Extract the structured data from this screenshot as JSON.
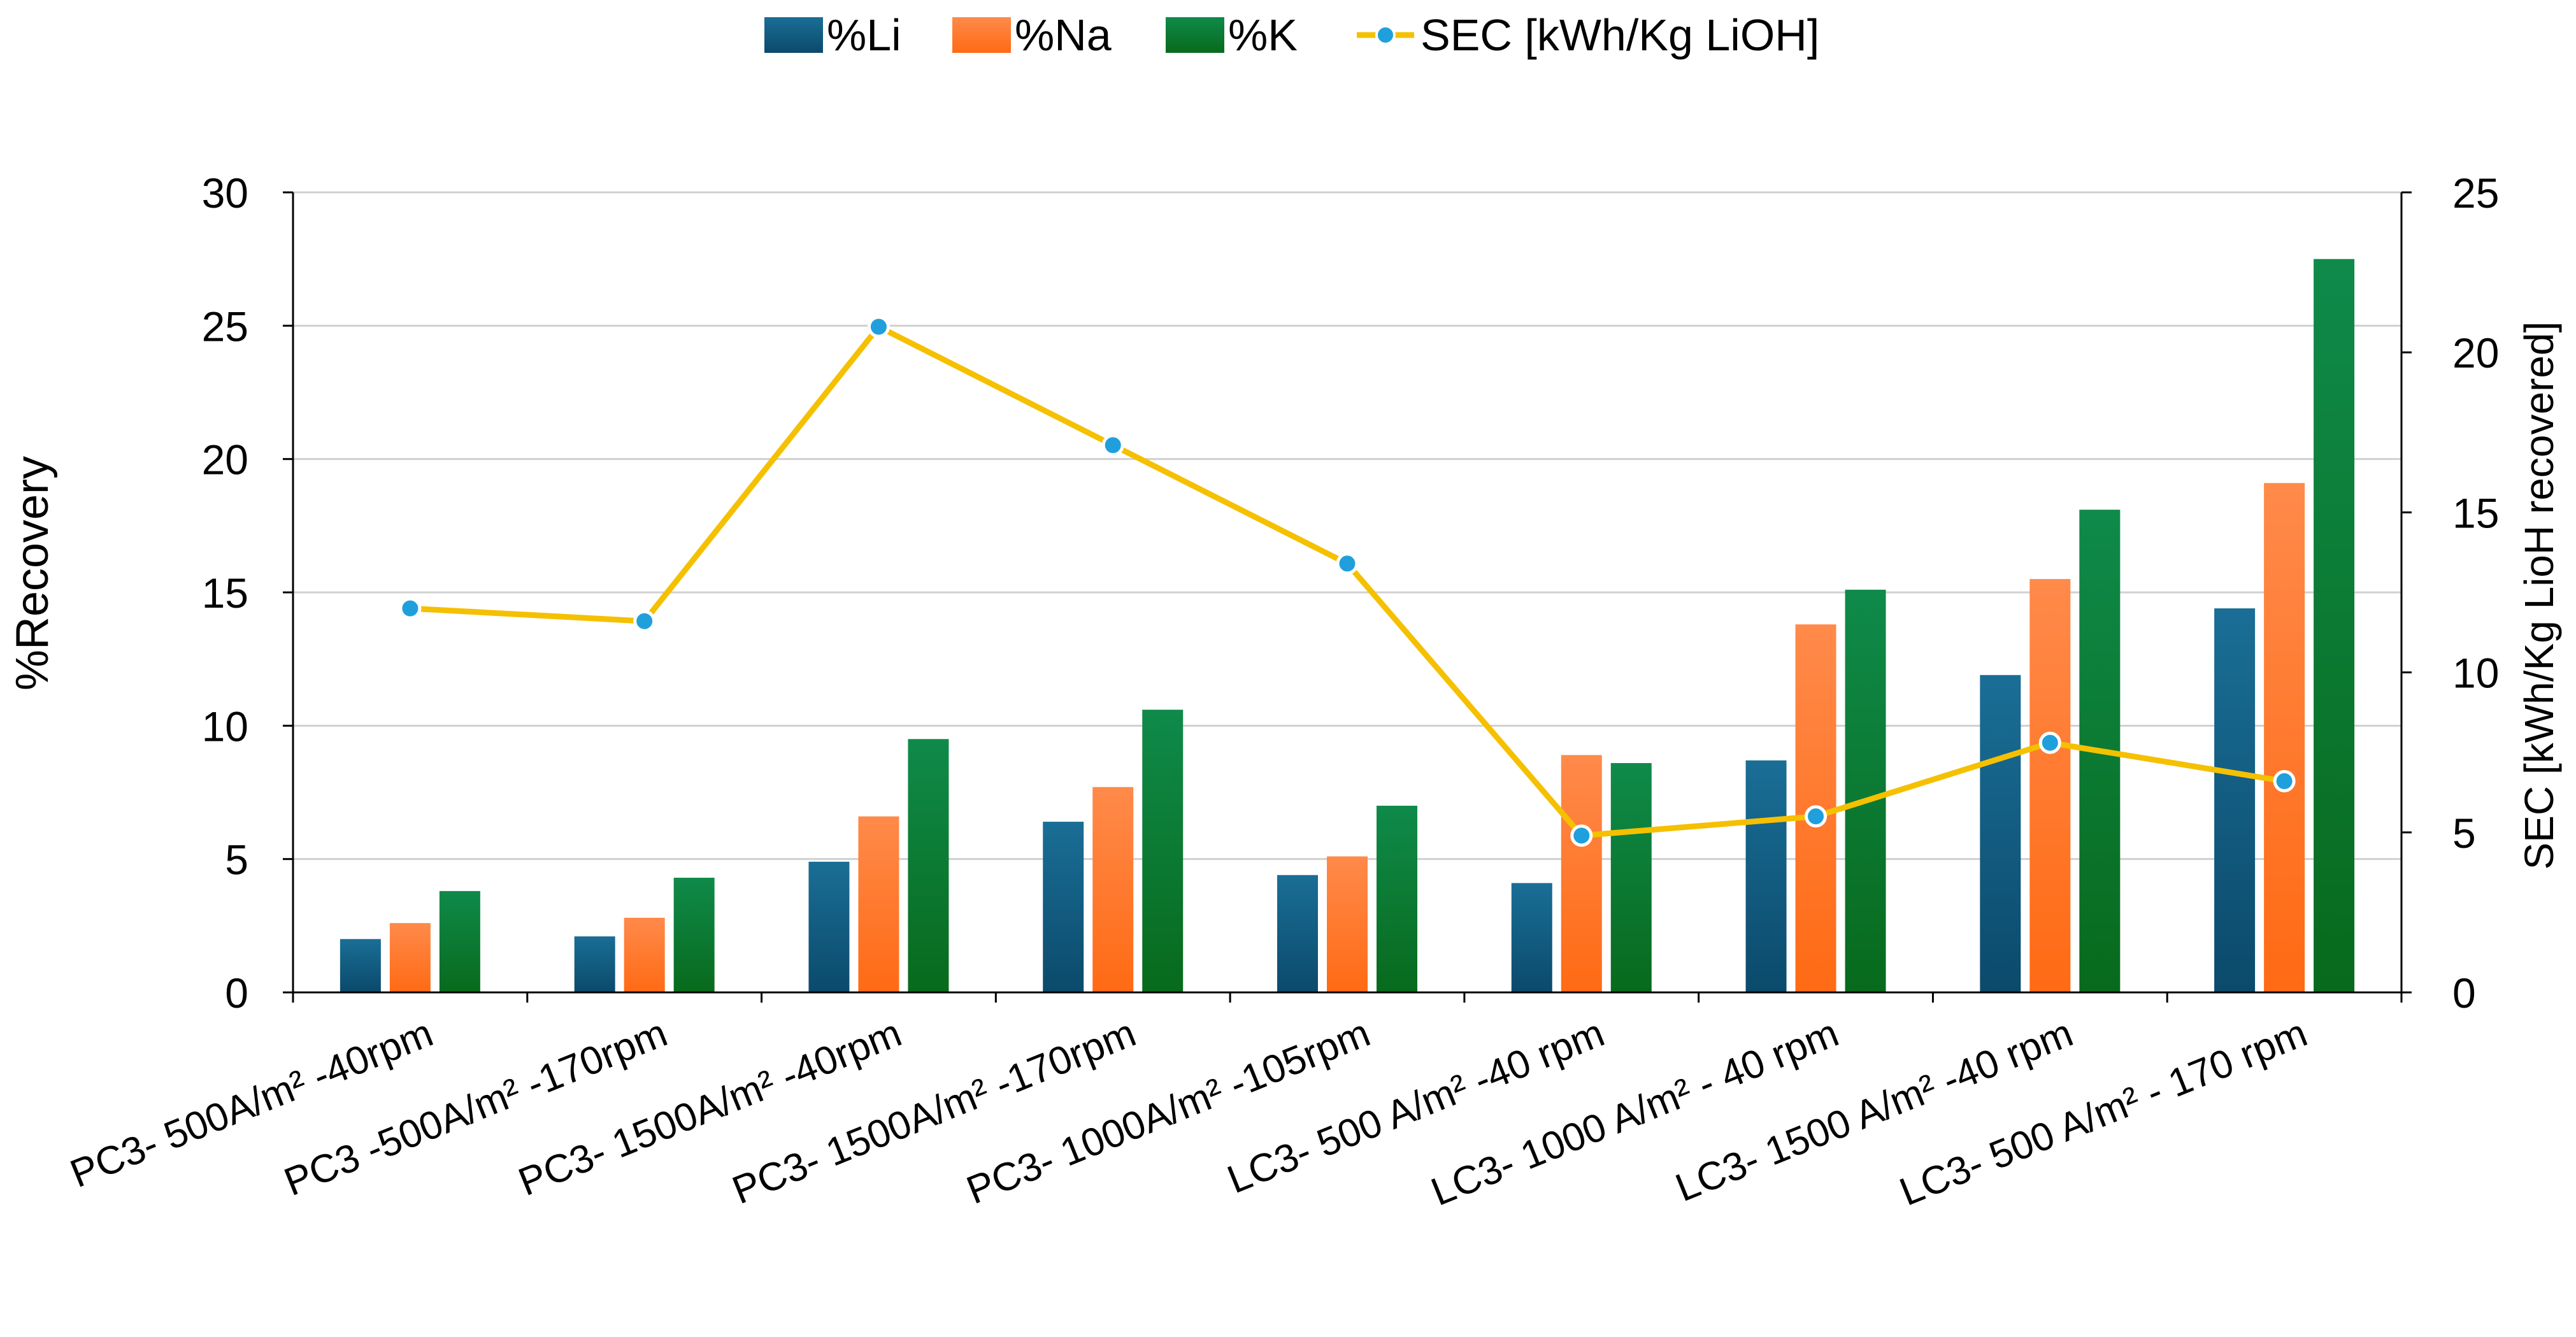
{
  "chart_data": {
    "type": "bar",
    "title": "",
    "categories": [
      "PC3- 500A/m² -40rpm",
      "PC3 -500A/m² -170rpm",
      "PC3- 1500A/m² -40rpm",
      "PC3- 1500A/m² -170rpm",
      "PC3- 1000A/m² -105rpm",
      "LC3- 500 A/m² -40 rpm",
      "LC3- 1000 A/m² - 40 rpm",
      "LC3- 1500 A/m² -40 rpm",
      "LC3- 500 A/m² - 170 rpm"
    ],
    "series": [
      {
        "name": "%Li",
        "kind": "bar",
        "axis": "left",
        "color": "#1a6e96",
        "color_dark": "#0b4a6b",
        "values": [
          2.0,
          2.1,
          4.9,
          6.4,
          4.4,
          4.1,
          8.7,
          11.9,
          14.4
        ]
      },
      {
        "name": "%Na",
        "kind": "bar",
        "axis": "left",
        "color": "#ff8a4a",
        "color_dark": "#ff6a14",
        "values": [
          2.6,
          2.8,
          6.6,
          7.7,
          5.1,
          8.9,
          13.8,
          15.5,
          19.1
        ]
      },
      {
        "name": "%K",
        "kind": "bar",
        "axis": "left",
        "color": "#0f8a4a",
        "color_dark": "#086a1c",
        "values": [
          3.8,
          4.3,
          9.5,
          10.6,
          7.0,
          8.6,
          15.1,
          18.1,
          27.5
        ]
      },
      {
        "name": "SEC [kWh/Kg LiOH]",
        "kind": "line",
        "axis": "right",
        "color": "#f5c000",
        "marker_color": "#1fa0dc",
        "values": [
          12.0,
          11.6,
          20.8,
          17.1,
          13.4,
          4.9,
          5.5,
          7.8,
          6.6
        ]
      }
    ],
    "ylabel": "%Recovery",
    "y2label": "SEC [kWh/Kg LioH recovered]",
    "ylim": [
      0,
      30
    ],
    "y2lim": [
      0,
      25
    ],
    "yticks": [
      "0",
      "5",
      "10",
      "15",
      "20",
      "25",
      "30"
    ],
    "y2ticks": [
      "0",
      "5",
      "10",
      "15",
      "20",
      "25"
    ],
    "grid": true,
    "legend_position": "top-center"
  }
}
